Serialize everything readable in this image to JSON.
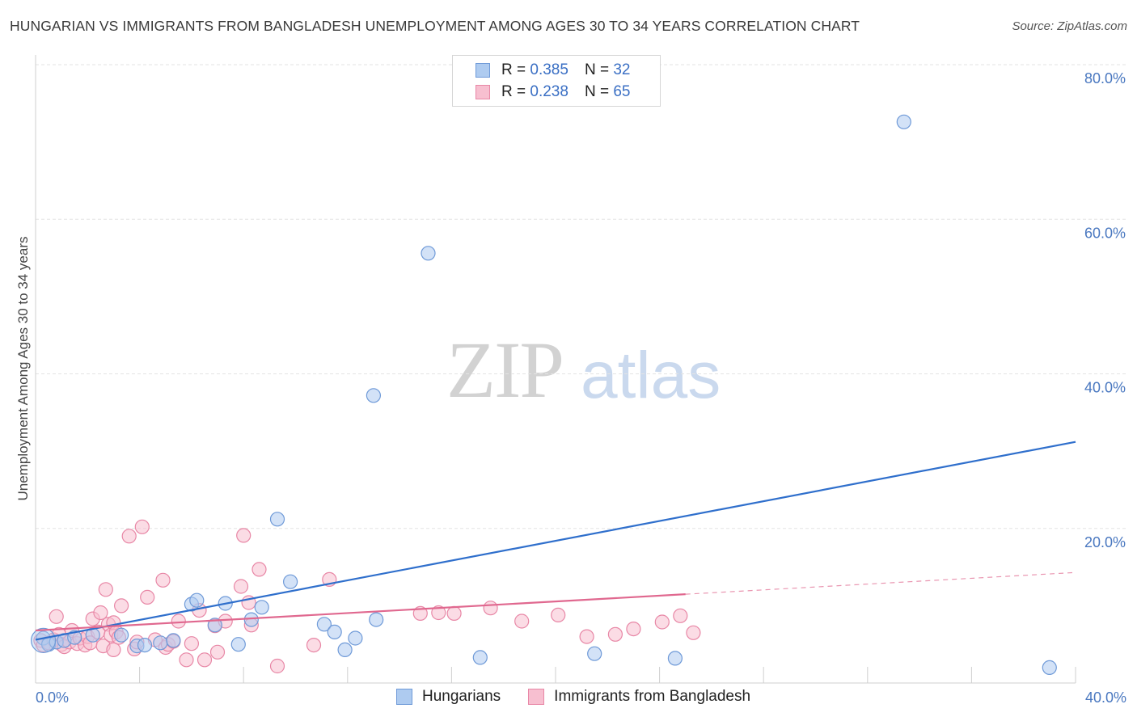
{
  "title": "HUNGARIAN VS IMMIGRANTS FROM BANGLADESH UNEMPLOYMENT AMONG AGES 30 TO 34 YEARS CORRELATION CHART",
  "source": "Source: ZipAtlas.com",
  "watermark": {
    "zip": "ZIP",
    "atlas": "atlas"
  },
  "colors": {
    "blue_fill": "#aecbf0",
    "blue_stroke": "#6f9ad8",
    "blue_line": "#2f6fcc",
    "pink_fill": "#f7bfd0",
    "pink_stroke": "#e887a6",
    "pink_line": "#e0688f",
    "grid": "#e3e3e3",
    "tick_text": "#4a78c0"
  },
  "legend": [
    {
      "r_label": "R =",
      "r_value": "0.385",
      "n_label": "N =",
      "n_value": "32"
    },
    {
      "r_label": "R =",
      "r_value": "0.238",
      "n_label": "N =",
      "n_value": "65"
    }
  ],
  "bottom_legend": [
    {
      "label": "Hungarians"
    },
    {
      "label": "Immigrants from Bangladesh"
    }
  ],
  "chart_data": {
    "type": "scatter",
    "title": "HUNGARIAN VS IMMIGRANTS FROM BANGLADESH UNEMPLOYMENT AMONG AGES 30 TO 34 YEARS CORRELATION CHART",
    "xlabel": "",
    "ylabel": "Unemployment Among Ages 30 to 34 years",
    "xlim": [
      0,
      40
    ],
    "ylim": [
      0,
      80
    ],
    "x_tick_labels": [
      "0.0%",
      "40.0%"
    ],
    "y_ticks": [
      20,
      40,
      60,
      80
    ],
    "y_tick_labels": [
      "20.0%",
      "40.0%",
      "60.0%",
      "80.0%"
    ],
    "series": [
      {
        "name": "Hungarians",
        "r": 0.385,
        "n": 32,
        "points": [
          [
            0.3,
            5.8
          ],
          [
            0.5,
            5.0
          ],
          [
            0.8,
            5.3
          ],
          [
            1.1,
            5.5
          ],
          [
            1.5,
            5.9
          ],
          [
            2.2,
            6.2
          ],
          [
            3.3,
            6.2
          ],
          [
            3.9,
            4.8
          ],
          [
            4.2,
            4.9
          ],
          [
            4.8,
            5.2
          ],
          [
            5.3,
            5.5
          ],
          [
            6.0,
            10.2
          ],
          [
            6.2,
            10.7
          ],
          [
            6.9,
            7.5
          ],
          [
            7.3,
            10.3
          ],
          [
            7.8,
            5.0
          ],
          [
            8.3,
            8.2
          ],
          [
            8.7,
            9.8
          ],
          [
            9.3,
            21.2
          ],
          [
            9.8,
            13.1
          ],
          [
            11.1,
            7.6
          ],
          [
            11.5,
            6.6
          ],
          [
            11.9,
            4.3
          ],
          [
            12.3,
            5.8
          ],
          [
            13.0,
            37.2
          ],
          [
            13.1,
            8.2
          ],
          [
            15.1,
            55.6
          ],
          [
            17.1,
            3.3
          ],
          [
            21.5,
            3.8
          ],
          [
            24.6,
            3.2
          ],
          [
            33.4,
            72.6
          ],
          [
            39.0,
            2.0
          ]
        ],
        "trend": {
          "x": [
            0,
            40
          ],
          "y": [
            5.6,
            31.2
          ],
          "dashed_from": null
        }
      },
      {
        "name": "Immigrants from Bangladesh",
        "r": 0.238,
        "n": 65,
        "points": [
          [
            0.2,
            5.5
          ],
          [
            0.3,
            4.9
          ],
          [
            0.5,
            5.2
          ],
          [
            0.7,
            5.6
          ],
          [
            0.8,
            8.6
          ],
          [
            0.9,
            6.3
          ],
          [
            1.0,
            5.0
          ],
          [
            1.1,
            4.7
          ],
          [
            1.3,
            5.3
          ],
          [
            1.4,
            6.8
          ],
          [
            1.6,
            5.1
          ],
          [
            1.7,
            5.8
          ],
          [
            1.9,
            4.9
          ],
          [
            2.0,
            6.0
          ],
          [
            2.1,
            5.2
          ],
          [
            2.2,
            8.3
          ],
          [
            2.4,
            6.6
          ],
          [
            2.5,
            9.1
          ],
          [
            2.6,
            4.8
          ],
          [
            2.7,
            12.1
          ],
          [
            2.8,
            7.6
          ],
          [
            2.9,
            6.2
          ],
          [
            3.0,
            7.8
          ],
          [
            3.0,
            4.3
          ],
          [
            3.1,
            6.6
          ],
          [
            3.2,
            5.9
          ],
          [
            3.3,
            10.0
          ],
          [
            3.6,
            19.0
          ],
          [
            3.8,
            4.4
          ],
          [
            3.9,
            5.3
          ],
          [
            4.1,
            20.2
          ],
          [
            4.3,
            11.1
          ],
          [
            4.6,
            5.6
          ],
          [
            4.9,
            13.3
          ],
          [
            5.0,
            4.6
          ],
          [
            5.1,
            5.0
          ],
          [
            5.3,
            5.4
          ],
          [
            5.5,
            8.0
          ],
          [
            5.8,
            3.0
          ],
          [
            6.0,
            5.1
          ],
          [
            6.3,
            9.4
          ],
          [
            6.5,
            3.0
          ],
          [
            6.9,
            7.4
          ],
          [
            7.0,
            4.0
          ],
          [
            7.3,
            8.0
          ],
          [
            7.9,
            12.5
          ],
          [
            8.0,
            19.1
          ],
          [
            8.2,
            10.4
          ],
          [
            8.3,
            7.5
          ],
          [
            8.6,
            14.7
          ],
          [
            9.3,
            2.2
          ],
          [
            10.7,
            4.9
          ],
          [
            11.3,
            13.4
          ],
          [
            14.8,
            9.0
          ],
          [
            15.5,
            9.1
          ],
          [
            16.1,
            9.0
          ],
          [
            17.5,
            9.7
          ],
          [
            18.7,
            8.0
          ],
          [
            20.1,
            8.8
          ],
          [
            21.2,
            6.0
          ],
          [
            22.3,
            6.3
          ],
          [
            23.0,
            7.0
          ],
          [
            24.1,
            7.9
          ],
          [
            24.8,
            8.7
          ],
          [
            25.3,
            6.5
          ]
        ],
        "trend": {
          "x": [
            0,
            40
          ],
          "y": [
            6.8,
            14.3
          ],
          "dashed_from": 25.0
        }
      }
    ]
  }
}
